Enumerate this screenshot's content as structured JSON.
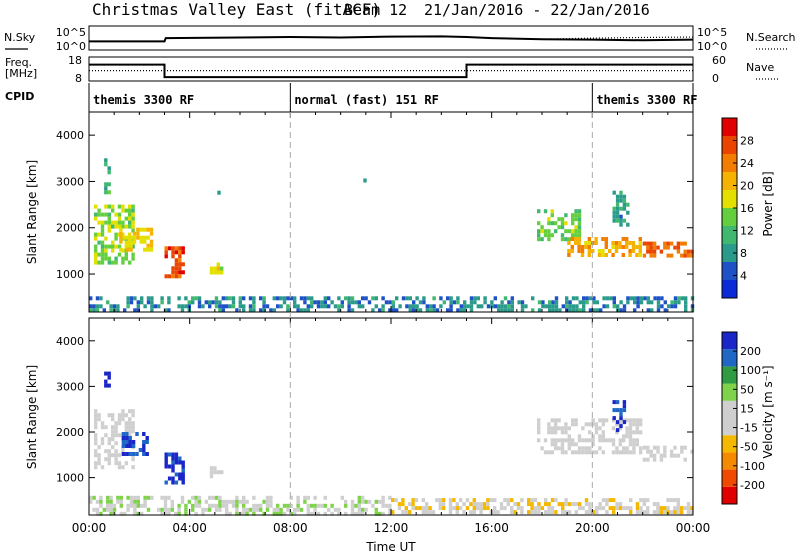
{
  "header": {
    "title": "Christmas Valley East (fitACF)",
    "beam": "Beam 12",
    "date_range": "21/Jan/2016 - 22/Jan/2016"
  },
  "labels": {
    "nsky": "N.Sky",
    "freq_line1": "Freq.",
    "freq_line2": "[MHz]",
    "cpid": "CPID",
    "nsearch": "N.Search",
    "nave": "Nave"
  },
  "colors": {
    "power": [
      "#0b2bd8",
      "#1f51c6",
      "#2a9b8a",
      "#41b870",
      "#63cf3f",
      "#e3e000",
      "#f6b200",
      "#f37d00",
      "#e94500",
      "#e00000"
    ],
    "velocity": [
      "#e00000",
      "#f04a00",
      "#f58a00",
      "#f4b800",
      "#cfcfcf",
      "#cfcfcf",
      "#7fd34a",
      "#2f9b42",
      "#1f67c5",
      "#1a26c8"
    ],
    "dash": "#aaaaaa"
  },
  "chart_data": [
    {
      "type": "line",
      "panel": "noise",
      "ytick_left": [
        "10^5",
        "10^0"
      ],
      "ytick_right": [
        "10^5",
        "10^0"
      ],
      "series": [
        {
          "name": "N.Sky",
          "style": "solid",
          "x": [
            0,
            0.3,
            3,
            3.05,
            8,
            10,
            12,
            14,
            15,
            16,
            18,
            20,
            22,
            24
          ],
          "y": [
            0.4,
            0.4,
            0.4,
            0.55,
            0.6,
            0.58,
            0.62,
            0.63,
            0.6,
            0.55,
            0.5,
            0.48,
            0.45,
            0.48
          ]
        },
        {
          "name": "N.Search",
          "style": "dotted",
          "x": [
            18,
            20,
            22,
            24
          ],
          "y": [
            0.5,
            0.55,
            0.58,
            0.6
          ]
        }
      ]
    },
    {
      "type": "line",
      "panel": "frequency",
      "ytick_left": [
        "18",
        "8"
      ],
      "ytick_right": [
        "60",
        "0"
      ],
      "series": [
        {
          "name": "Freq.",
          "unit": "MHz",
          "style": "solid",
          "x": [
            0,
            3,
            3,
            15,
            15,
            24
          ],
          "y": [
            14.8,
            14.8,
            9.6,
            9.6,
            14.8,
            14.8
          ]
        },
        {
          "name": "Nave",
          "style": "dotted",
          "x": [
            0,
            24
          ],
          "y": [
            26,
            26
          ]
        }
      ]
    },
    {
      "type": "table",
      "panel": "cpid",
      "segments": [
        {
          "start": 0,
          "end": 8,
          "label": "themis 3300 RF"
        },
        {
          "start": 8,
          "end": 20,
          "label": "normal (fast) 151 RF"
        },
        {
          "start": 20,
          "end": 24,
          "label": "themis 3300 RF"
        }
      ]
    },
    {
      "type": "heatmap",
      "panel": "power",
      "ylabel": "Slant Range [km]",
      "ylim": [
        180,
        4500
      ],
      "yticks": [
        1000,
        2000,
        3000,
        4000
      ],
      "colorbar": {
        "label": "Power [dB]",
        "ticks": [
          "4",
          "8",
          "12",
          "16",
          "20",
          "24",
          "28"
        ],
        "range": [
          0,
          30
        ]
      },
      "regions": [
        {
          "x": [
            0.2,
            1.8
          ],
          "y": [
            1200,
            2500
          ],
          "v": 14
        },
        {
          "x": [
            0.6,
            0.9
          ],
          "y": [
            2700,
            3500
          ],
          "v": 10
        },
        {
          "x": [
            1.2,
            2.6
          ],
          "y": [
            1500,
            2000
          ],
          "v": 18
        },
        {
          "x": [
            3.0,
            3.8
          ],
          "y": [
            900,
            1600
          ],
          "v": 25
        },
        {
          "x": [
            4.8,
            5.4
          ],
          "y": [
            950,
            1250
          ],
          "v": 16
        },
        {
          "x": [
            5.1,
            5.2
          ],
          "y": [
            2600,
            2800
          ],
          "v": 10
        },
        {
          "x": [
            10.9,
            11.0
          ],
          "y": [
            2950,
            3150
          ],
          "v": 8
        },
        {
          "x": [
            17.8,
            19.5
          ],
          "y": [
            1700,
            2400
          ],
          "v": 13
        },
        {
          "x": [
            19.0,
            22.0
          ],
          "y": [
            1400,
            1800
          ],
          "v": 20
        },
        {
          "x": [
            22.0,
            24.0
          ],
          "y": [
            1350,
            1700
          ],
          "v": 24
        },
        {
          "x": [
            20.8,
            21.5
          ],
          "y": [
            2000,
            2800
          ],
          "v": 8
        },
        {
          "x": [
            0.0,
            24.0
          ],
          "y": [
            180,
            520
          ],
          "v": 7
        }
      ]
    },
    {
      "type": "heatmap",
      "panel": "velocity",
      "xlabel": "Time UT",
      "ylabel": "Slant Range [km]",
      "ylim": [
        180,
        4500
      ],
      "yticks": [
        1000,
        2000,
        3000,
        4000
      ],
      "xticks": [
        "00:00",
        "04:00",
        "08:00",
        "12:00",
        "16:00",
        "20:00",
        "00:00"
      ],
      "colorbar": {
        "label": "Velocity [m s⁻¹]",
        "ticks": [
          "-200",
          "-100",
          "-50",
          "-15",
          "15",
          "50",
          "100",
          "200"
        ],
        "range": [
          -250,
          250
        ]
      },
      "regions": [
        {
          "x": [
            0.2,
            1.8
          ],
          "y": [
            1200,
            2500
          ],
          "v": 0
        },
        {
          "x": [
            0.6,
            0.9
          ],
          "y": [
            3000,
            3500
          ],
          "v": 210
        },
        {
          "x": [
            1.3,
            2.4
          ],
          "y": [
            1500,
            2000
          ],
          "v": 200
        },
        {
          "x": [
            3.0,
            3.8
          ],
          "y": [
            850,
            1550
          ],
          "v": 220
        },
        {
          "x": [
            4.8,
            5.4
          ],
          "y": [
            950,
            1250
          ],
          "v": 0
        },
        {
          "x": [
            17.8,
            22.0
          ],
          "y": [
            1500,
            2300
          ],
          "v": 0
        },
        {
          "x": [
            22.0,
            24.0
          ],
          "y": [
            1350,
            1700
          ],
          "v": 0
        },
        {
          "x": [
            20.8,
            21.4
          ],
          "y": [
            2000,
            2700
          ],
          "v": 200
        },
        {
          "x": [
            0.0,
            12.0
          ],
          "y": [
            180,
            600
          ],
          "v": 30
        },
        {
          "x": [
            12.0,
            24.0
          ],
          "y": [
            180,
            550
          ],
          "v": -30
        }
      ]
    }
  ]
}
